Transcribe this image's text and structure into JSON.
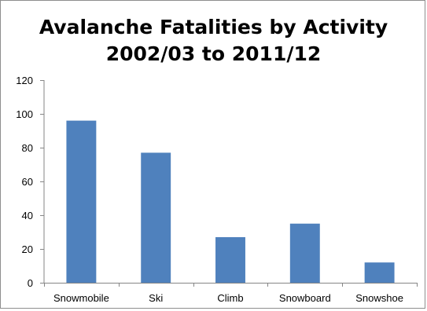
{
  "chart_data": {
    "type": "bar",
    "title": "Avalanche Fatalities by Activity",
    "subtitle": "2002/03 to 2011/12",
    "categories": [
      "Snowmobile",
      "Ski",
      "Climb",
      "Snowboard",
      "Snowshoe"
    ],
    "values": [
      96,
      77,
      27,
      35,
      12
    ],
    "xlabel": "",
    "ylabel": "",
    "ylim": [
      0,
      120
    ],
    "yticks": [
      0,
      20,
      40,
      60,
      80,
      100,
      120
    ],
    "grid": false,
    "legend": "none",
    "bar_color": "#4f81bd"
  }
}
